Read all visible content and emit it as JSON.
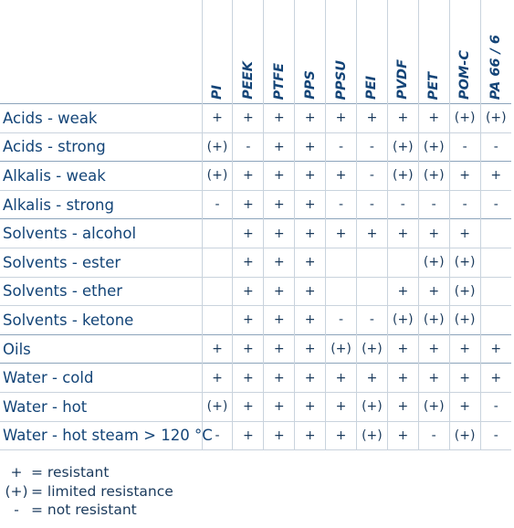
{
  "materials": [
    "PI",
    "PEEK",
    "PTFE",
    "PPS",
    "PPSU",
    "PEI",
    "PVDF",
    "PET",
    "POM-C",
    "PA 66 / 6"
  ],
  "rows": [
    {
      "label": "Acids - weak",
      "group_start": true,
      "values": [
        "+",
        "+",
        "+",
        "+",
        "+",
        "+",
        "+",
        "+",
        "(+)",
        "(+)"
      ]
    },
    {
      "label": "Acids - strong",
      "group_start": false,
      "values": [
        "(+)",
        "-",
        "+",
        "+",
        "-",
        "-",
        "(+)",
        "(+)",
        "-",
        "-"
      ]
    },
    {
      "label": "Alkalis - weak",
      "group_start": true,
      "values": [
        "(+)",
        "+",
        "+",
        "+",
        "+",
        "-",
        "(+)",
        "(+)",
        "+",
        "+"
      ]
    },
    {
      "label": "Alkalis - strong",
      "group_start": false,
      "values": [
        "-",
        "+",
        "+",
        "+",
        "-",
        "-",
        "-",
        "-",
        "-",
        "-"
      ]
    },
    {
      "label": "Solvents - alcohol",
      "group_start": true,
      "values": [
        "",
        "+",
        "+",
        "+",
        "+",
        "+",
        "+",
        "+",
        "+",
        ""
      ]
    },
    {
      "label": "Solvents - ester",
      "group_start": false,
      "values": [
        "",
        "+",
        "+",
        "+",
        "",
        "",
        "",
        "(+)",
        "(+)",
        ""
      ]
    },
    {
      "label": "Solvents - ether",
      "group_start": false,
      "values": [
        "",
        "+",
        "+",
        "+",
        "",
        "",
        "+",
        "+",
        "(+)",
        ""
      ]
    },
    {
      "label": "Solvents - ketone",
      "group_start": false,
      "values": [
        "",
        "+",
        "+",
        "+",
        "-",
        "-",
        "(+)",
        "(+)",
        "(+)",
        ""
      ]
    },
    {
      "label": "Oils",
      "group_start": true,
      "values": [
        "+",
        "+",
        "+",
        "+",
        "(+)",
        "(+)",
        "+",
        "+",
        "+",
        "+"
      ]
    },
    {
      "label": "Water - cold",
      "group_start": true,
      "values": [
        "+",
        "+",
        "+",
        "+",
        "+",
        "+",
        "+",
        "+",
        "+",
        "+"
      ]
    },
    {
      "label": "Water - hot",
      "group_start": false,
      "values": [
        "(+)",
        "+",
        "+",
        "+",
        "+",
        "(+)",
        "+",
        "(+)",
        "+",
        "-"
      ]
    },
    {
      "label": "Water - hot steam > 120 °C",
      "group_start": false,
      "values": [
        "-",
        "+",
        "+",
        "+",
        "+",
        "(+)",
        "+",
        "-",
        "(+)",
        "-"
      ]
    }
  ],
  "legend": [
    {
      "symbol": "+",
      "text": "= resistant"
    },
    {
      "symbol": "(+)",
      "text": "= limited resistance"
    },
    {
      "symbol": "-",
      "text": "= not resistant"
    }
  ],
  "colors": {
    "text": "#134477",
    "grid": "#c9d3dd",
    "group_line": "#8ca4bb"
  }
}
